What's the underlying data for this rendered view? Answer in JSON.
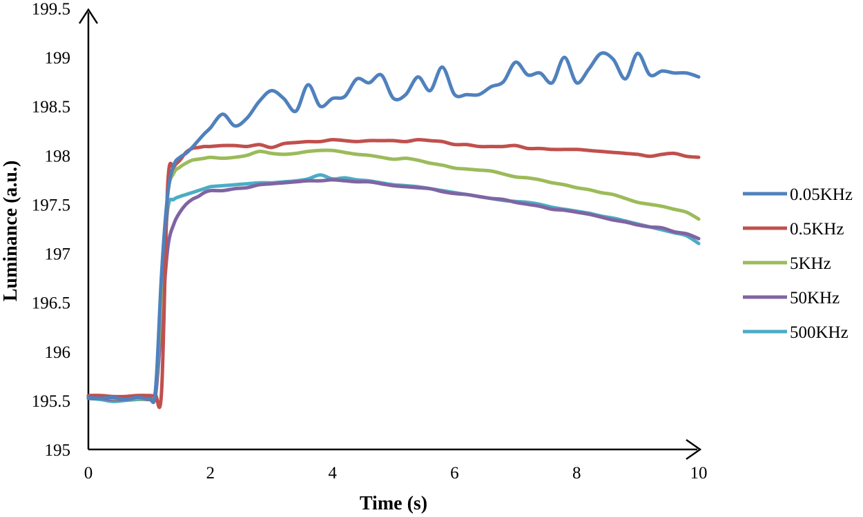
{
  "chart_data": {
    "type": "line",
    "title": "",
    "xlabel": "Time (s)",
    "ylabel": "Luminance (a.u.)",
    "xlim": [
      0,
      10
    ],
    "ylim": [
      195,
      199.5
    ],
    "xticks": [
      0,
      2,
      4,
      6,
      8,
      10
    ],
    "xtick_labels": [
      "0",
      "2",
      "4",
      "6",
      "8",
      "10"
    ],
    "yticks": [
      195,
      195.5,
      196,
      196.5,
      197,
      197.5,
      198,
      198.5,
      199,
      199.5
    ],
    "ytick_labels": [
      "195",
      "195.5",
      "196",
      "196.5",
      "197",
      "197.5",
      "198",
      "198.5",
      "199",
      "199.5"
    ],
    "grid": false,
    "legend_position": "right",
    "x": [
      0,
      0.2,
      0.4,
      0.6,
      0.8,
      1.0,
      1.1,
      1.2,
      1.3,
      1.4,
      1.5,
      1.6,
      1.7,
      1.8,
      1.9,
      2.0,
      2.2,
      2.4,
      2.6,
      2.8,
      3.0,
      3.2,
      3.4,
      3.6,
      3.8,
      4.0,
      4.2,
      4.4,
      4.6,
      4.8,
      5.0,
      5.2,
      5.4,
      5.6,
      5.8,
      6.0,
      6.2,
      6.4,
      6.6,
      6.8,
      7.0,
      7.2,
      7.4,
      7.6,
      7.8,
      8.0,
      8.2,
      8.4,
      8.6,
      8.8,
      9.0,
      9.2,
      9.4,
      9.6,
      9.8,
      10.0
    ],
    "series": [
      {
        "name": "0.05KHz",
        "color": "#4F81BD",
        "values": [
          195.53,
          195.52,
          195.53,
          195.51,
          195.53,
          195.52,
          195.6,
          196.8,
          197.6,
          197.9,
          197.98,
          198.02,
          198.08,
          198.15,
          198.22,
          198.28,
          198.42,
          198.3,
          198.38,
          198.55,
          198.66,
          198.58,
          198.45,
          198.72,
          198.5,
          198.58,
          198.6,
          198.78,
          198.74,
          198.82,
          198.58,
          198.62,
          198.8,
          198.66,
          198.9,
          198.62,
          198.62,
          198.62,
          198.7,
          198.75,
          198.95,
          198.82,
          198.84,
          198.74,
          199.0,
          198.74,
          198.88,
          199.04,
          198.98,
          198.78,
          199.04,
          198.82,
          198.86,
          198.84,
          198.84,
          198.8
        ]
      },
      {
        "name": "0.5KHz",
        "color": "#C0504D",
        "values": [
          195.55,
          195.55,
          195.54,
          195.54,
          195.55,
          195.55,
          195.55,
          195.6,
          197.7,
          197.88,
          197.95,
          198.03,
          198.07,
          198.08,
          198.09,
          198.09,
          198.1,
          198.1,
          198.09,
          198.11,
          198.08,
          198.12,
          198.13,
          198.14,
          198.14,
          198.16,
          198.15,
          198.14,
          198.15,
          198.15,
          198.15,
          198.14,
          198.16,
          198.15,
          198.14,
          198.11,
          198.11,
          198.09,
          198.09,
          198.09,
          198.1,
          198.07,
          198.07,
          198.06,
          198.06,
          198.06,
          198.05,
          198.04,
          198.03,
          198.02,
          198.01,
          197.99,
          198.01,
          198.02,
          197.99,
          197.98
        ]
      },
      {
        "name": "5KHz",
        "color": "#9BBB59",
        "values": [
          195.54,
          195.54,
          195.52,
          195.52,
          195.52,
          195.52,
          195.6,
          196.6,
          197.6,
          197.82,
          197.88,
          197.92,
          197.95,
          197.96,
          197.97,
          197.98,
          197.97,
          197.98,
          198.0,
          198.04,
          198.02,
          198.01,
          198.02,
          198.04,
          198.05,
          198.05,
          198.03,
          198.01,
          198.0,
          197.98,
          197.96,
          197.97,
          197.95,
          197.92,
          197.9,
          197.87,
          197.86,
          197.85,
          197.84,
          197.81,
          197.78,
          197.77,
          197.75,
          197.72,
          197.7,
          197.67,
          197.65,
          197.62,
          197.6,
          197.56,
          197.52,
          197.5,
          197.48,
          197.45,
          197.42,
          197.35
        ]
      },
      {
        "name": "50KHz",
        "color": "#8064A2",
        "values": [
          195.52,
          195.52,
          195.51,
          195.51,
          195.52,
          195.51,
          195.55,
          196.3,
          197.05,
          197.3,
          197.42,
          197.5,
          197.55,
          197.58,
          197.62,
          197.64,
          197.64,
          197.66,
          197.67,
          197.7,
          197.71,
          197.72,
          197.73,
          197.74,
          197.74,
          197.75,
          197.74,
          197.73,
          197.73,
          197.71,
          197.69,
          197.68,
          197.67,
          197.66,
          197.63,
          197.61,
          197.6,
          197.58,
          197.56,
          197.55,
          197.52,
          197.5,
          197.48,
          197.45,
          197.44,
          197.42,
          197.4,
          197.37,
          197.34,
          197.32,
          197.29,
          197.27,
          197.26,
          197.22,
          197.2,
          197.15
        ]
      },
      {
        "name": "500KHz",
        "color": "#4BACC6",
        "values": [
          195.52,
          195.51,
          195.49,
          195.5,
          195.51,
          195.52,
          195.6,
          196.6,
          197.45,
          197.55,
          197.58,
          197.6,
          197.62,
          197.64,
          197.66,
          197.68,
          197.69,
          197.7,
          197.71,
          197.72,
          197.72,
          197.73,
          197.74,
          197.76,
          197.8,
          197.76,
          197.77,
          197.75,
          197.74,
          197.72,
          197.7,
          197.69,
          197.68,
          197.66,
          197.64,
          197.62,
          197.6,
          197.58,
          197.56,
          197.54,
          197.53,
          197.52,
          197.5,
          197.47,
          197.45,
          197.43,
          197.41,
          197.38,
          197.36,
          197.33,
          197.3,
          197.27,
          197.24,
          197.21,
          197.18,
          197.1
        ]
      }
    ]
  }
}
